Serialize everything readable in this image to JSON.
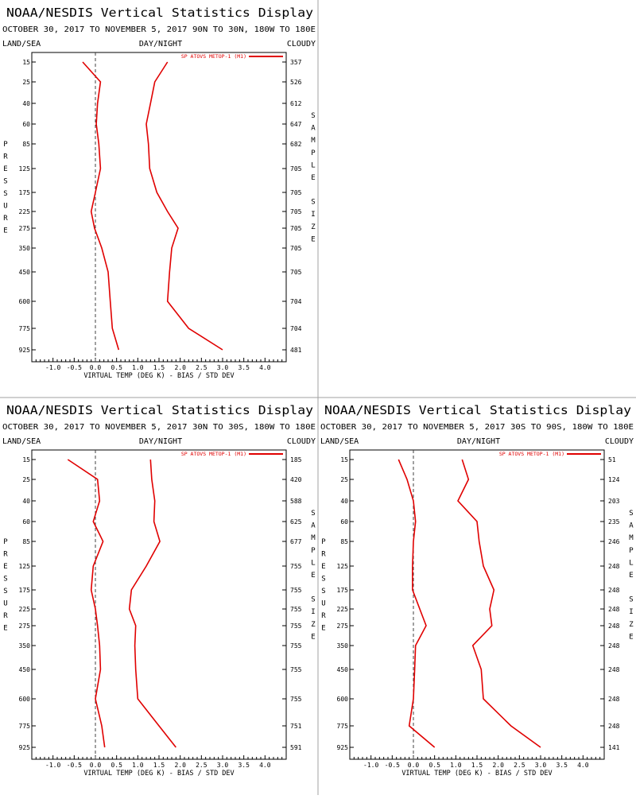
{
  "panels": [
    {
      "title": "NOAA/NESDIS Vertical Statistics Display",
      "subtitle": "OCTOBER 30, 2017 TO NOVEMBER 5, 2017  90N TO 30N, 180W TO 180E",
      "header_left": "LAND/SEA",
      "header_center": "DAY/NIGHT",
      "header_right": "CLOUDY",
      "left_axis_label": "PRESSURE",
      "right_axis_label": "SAMPLE SIZE"
    },
    {
      "title": "NOAA/NESDIS Vertical Statistics Display",
      "subtitle": "OCTOBER 30, 2017 TO NOVEMBER 5, 2017  30N TO 30S, 180W TO 180E",
      "header_left": "LAND/SEA",
      "header_center": "DAY/NIGHT",
      "header_right": "CLOUDY",
      "left_axis_label": "PRESSURE",
      "right_axis_label": "SAMPLE SIZE"
    },
    {
      "title": "NOAA/NESDIS Vertical Statistics Display",
      "subtitle": "OCTOBER 30, 2017 TO NOVEMBER 5, 2017  30S TO 90S, 180W TO 180E",
      "header_left": "LAND/SEA",
      "header_center": "DAY/NIGHT",
      "header_right": "CLOUDY",
      "left_axis_label": "PRESSURE",
      "right_axis_label": "SAMPLE SIZE"
    }
  ],
  "colors": {
    "series": "#e00000",
    "frame": "#000000",
    "divider": "#a0a0a0",
    "zero_line": "#404040"
  },
  "chart_data": [
    {
      "type": "line",
      "xlabel": "VIRTUAL TEMP (DEG K) - BIAS / STD DEV",
      "x_ticks": [
        "-1.0",
        "-0.5",
        "0.0",
        "0.5",
        "1.0",
        "1.5",
        "2.0",
        "2.5",
        "3.0",
        "3.5",
        "4.0"
      ],
      "xlim": [
        -1.5,
        4.5
      ],
      "y_categories": [
        "15",
        "25",
        "40",
        "60",
        "85",
        "125",
        "175",
        "225",
        "275",
        "350",
        "450",
        "600",
        "775",
        "925"
      ],
      "sample_size": [
        "357",
        "526",
        "612",
        "647",
        "682",
        "705",
        "705",
        "705",
        "705",
        "705",
        "705",
        "704",
        "704",
        "481"
      ],
      "legend": "SP ATOVS METOP-1 (M1)",
      "series": [
        {
          "name": "BIAS",
          "pressure": [
            15,
            25,
            40,
            60,
            85,
            125,
            175,
            225,
            275,
            350,
            450,
            600,
            775,
            925
          ],
          "values": [
            -0.3,
            0.12,
            0.05,
            0.02,
            0.08,
            0.12,
            0.0,
            -0.1,
            -0.02,
            0.15,
            0.3,
            0.35,
            0.4,
            0.55
          ]
        },
        {
          "name": "STD DEV",
          "pressure": [
            15,
            25,
            40,
            60,
            85,
            125,
            175,
            225,
            275,
            350,
            450,
            600,
            775,
            925
          ],
          "values": [
            1.7,
            1.4,
            1.3,
            1.2,
            1.25,
            1.28,
            1.45,
            1.7,
            1.95,
            1.8,
            1.75,
            1.7,
            2.2,
            3.0
          ]
        }
      ]
    },
    {
      "type": "line",
      "xlabel": "VIRTUAL TEMP (DEG K) - BIAS / STD DEV",
      "x_ticks": [
        "-1.0",
        "-0.5",
        "0.0",
        "0.5",
        "1.0",
        "1.5",
        "2.0",
        "2.5",
        "3.0",
        "3.5",
        "4.0"
      ],
      "xlim": [
        -1.5,
        4.5
      ],
      "y_categories": [
        "15",
        "25",
        "40",
        "60",
        "85",
        "125",
        "175",
        "225",
        "275",
        "350",
        "450",
        "600",
        "775",
        "925"
      ],
      "sample_size": [
        "185",
        "420",
        "588",
        "625",
        "677",
        "755",
        "755",
        "755",
        "755",
        "755",
        "755",
        "755",
        "751",
        "591"
      ],
      "legend": "SP ATOVS METOP-1 (M1)",
      "series": [
        {
          "name": "BIAS",
          "pressure": [
            15,
            25,
            40,
            60,
            85,
            125,
            175,
            225,
            275,
            350,
            450,
            600,
            775,
            925
          ],
          "values": [
            -0.65,
            0.05,
            0.1,
            -0.05,
            0.18,
            -0.05,
            -0.1,
            0.0,
            0.05,
            0.1,
            0.12,
            0.0,
            0.15,
            0.22
          ]
        },
        {
          "name": "STD DEV",
          "pressure": [
            15,
            25,
            40,
            60,
            85,
            125,
            175,
            225,
            275,
            350,
            450,
            600,
            775,
            925
          ],
          "values": [
            1.3,
            1.33,
            1.4,
            1.38,
            1.52,
            1.2,
            0.85,
            0.8,
            0.95,
            0.93,
            0.95,
            1.0,
            1.5,
            1.9
          ]
        }
      ]
    },
    {
      "type": "line",
      "xlabel": "VIRTUAL TEMP (DEG K) - BIAS / STD DEV",
      "x_ticks": [
        "-1.0",
        "-0.5",
        "0.0",
        "0.5",
        "1.0",
        "1.5",
        "2.0",
        "2.5",
        "3.0",
        "3.5",
        "4.0"
      ],
      "xlim": [
        -1.5,
        4.5
      ],
      "y_categories": [
        "15",
        "25",
        "40",
        "60",
        "85",
        "125",
        "175",
        "225",
        "275",
        "350",
        "450",
        "600",
        "775",
        "925"
      ],
      "sample_size": [
        "51",
        "124",
        "203",
        "235",
        "246",
        "248",
        "248",
        "248",
        "248",
        "248",
        "248",
        "248",
        "248",
        "141"
      ],
      "legend": "SP ATOVS METOP-1 (M1)",
      "series": [
        {
          "name": "BIAS",
          "pressure": [
            15,
            25,
            40,
            60,
            85,
            125,
            175,
            225,
            275,
            350,
            450,
            600,
            775,
            925
          ],
          "values": [
            -0.35,
            -0.15,
            0.0,
            0.05,
            0.0,
            -0.02,
            -0.02,
            0.15,
            0.3,
            0.05,
            0.03,
            0.0,
            -0.1,
            0.5
          ]
        },
        {
          "name": "STD DEV",
          "pressure": [
            15,
            25,
            40,
            60,
            85,
            125,
            175,
            225,
            275,
            350,
            450,
            600,
            775,
            925
          ],
          "values": [
            1.15,
            1.3,
            1.05,
            1.5,
            1.55,
            1.65,
            1.9,
            1.8,
            1.85,
            1.4,
            1.6,
            1.65,
            2.3,
            3.0
          ]
        }
      ]
    }
  ]
}
